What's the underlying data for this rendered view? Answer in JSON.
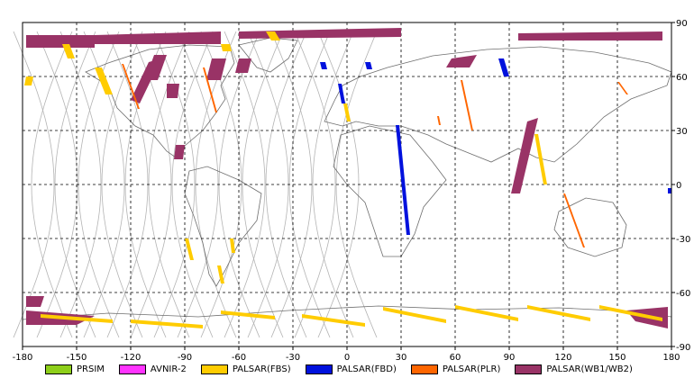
{
  "map": {
    "x_ticks": [
      "-180",
      "-150",
      "-120",
      "-90",
      "-60",
      "-30",
      "0",
      "30",
      "60",
      "90",
      "120",
      "150",
      "180"
    ],
    "y_ticks": [
      "90",
      "60",
      "30",
      "0",
      "-30",
      "-60",
      "-90"
    ],
    "colors": {
      "grid": "#000000",
      "orbits": "#b4b4b4",
      "coast": "#6e6e6e"
    }
  },
  "legend": [
    {
      "label": "PRSIM",
      "color": "#8ecf1a"
    },
    {
      "label": "AVNIR-2",
      "color": "#ff33ff"
    },
    {
      "label": "PALSAR(FBS)",
      "color": "#ffcc00"
    },
    {
      "label": "PALSAR(FBD)",
      "color": "#0011dd"
    },
    {
      "label": "PALSAR(PLR)",
      "color": "#ff6600"
    },
    {
      "label": "PALSAR(WB1/WB2)",
      "color": "#993366"
    }
  ],
  "swaths": [
    {
      "mode": "PALSAR(WB1/WB2)",
      "points": [
        [
          -178,
          83
        ],
        [
          -140,
          83
        ],
        [
          -140,
          76
        ],
        [
          -178,
          76
        ]
      ]
    },
    {
      "mode": "PALSAR(WB1/WB2)",
      "points": [
        [
          -140,
          83
        ],
        [
          -70,
          85
        ],
        [
          -70,
          78
        ],
        [
          -140,
          78
        ]
      ]
    },
    {
      "mode": "PALSAR(WB1/WB2)",
      "points": [
        [
          -60,
          85
        ],
        [
          30,
          87
        ],
        [
          30,
          82
        ],
        [
          -60,
          81
        ]
      ]
    },
    {
      "mode": "PALSAR(WB1/WB2)",
      "points": [
        [
          95,
          84
        ],
        [
          175,
          85
        ],
        [
          175,
          80
        ],
        [
          95,
          80
        ]
      ]
    },
    {
      "mode": "PALSAR(WB1/WB2)",
      "points": [
        [
          -110,
          68
        ],
        [
          -103,
          70
        ],
        [
          -115,
          45
        ],
        [
          -120,
          47
        ]
      ]
    },
    {
      "mode": "PALSAR(WB1/WB2)",
      "points": [
        [
          -107,
          72
        ],
        [
          -100,
          72
        ],
        [
          -105,
          58
        ],
        [
          -112,
          58
        ]
      ]
    },
    {
      "mode": "PALSAR(WB1/WB2)",
      "points": [
        [
          -75,
          70
        ],
        [
          -67,
          70
        ],
        [
          -70,
          58
        ],
        [
          -78,
          58
        ]
      ]
    },
    {
      "mode": "PALSAR(WB1/WB2)",
      "points": [
        [
          -60,
          70
        ],
        [
          -53,
          70
        ],
        [
          -55,
          62
        ],
        [
          -62,
          62
        ]
      ]
    },
    {
      "mode": "PALSAR(WB1/WB2)",
      "points": [
        [
          -100,
          56
        ],
        [
          -93,
          56
        ],
        [
          -94,
          48
        ],
        [
          -100,
          48
        ]
      ]
    },
    {
      "mode": "PALSAR(WB1/WB2)",
      "points": [
        [
          -95,
          22
        ],
        [
          -90,
          22
        ],
        [
          -91,
          14
        ],
        [
          -96,
          14
        ]
      ]
    },
    {
      "mode": "PALSAR(WB1/WB2)",
      "points": [
        [
          58,
          70
        ],
        [
          72,
          72
        ],
        [
          68,
          65
        ],
        [
          55,
          65
        ]
      ]
    },
    {
      "mode": "PALSAR(WB1/WB2)",
      "points": [
        [
          100,
          35
        ],
        [
          106,
          37
        ],
        [
          96,
          -5
        ],
        [
          91,
          -5
        ]
      ]
    },
    {
      "mode": "PALSAR(WB1/WB2)",
      "points": [
        [
          -178,
          -62
        ],
        [
          -168,
          -62
        ],
        [
          -170,
          -68
        ],
        [
          -178,
          -68
        ]
      ]
    },
    {
      "mode": "PALSAR(WB1/WB2)",
      "points": [
        [
          -178,
          -70
        ],
        [
          -140,
          -73
        ],
        [
          -150,
          -78
        ],
        [
          -178,
          -78
        ]
      ]
    },
    {
      "mode": "PALSAR(WB1/WB2)",
      "points": [
        [
          155,
          -70
        ],
        [
          178,
          -68
        ],
        [
          178,
          -80
        ],
        [
          160,
          -76
        ]
      ]
    },
    {
      "mode": "PALSAR(FBD)",
      "points": [
        [
          27,
          33
        ],
        [
          29,
          33
        ],
        [
          35,
          -28
        ],
        [
          33,
          -28
        ]
      ]
    },
    {
      "mode": "PALSAR(FBD)",
      "points": [
        [
          -5,
          56
        ],
        [
          -3,
          56
        ],
        [
          -1,
          45
        ],
        [
          -3,
          45
        ]
      ]
    },
    {
      "mode": "PALSAR(FBD)",
      "points": [
        [
          -15,
          68
        ],
        [
          -12,
          68
        ],
        [
          -11,
          64
        ],
        [
          -14,
          64
        ]
      ]
    },
    {
      "mode": "PALSAR(FBD)",
      "points": [
        [
          10,
          68
        ],
        [
          13,
          68
        ],
        [
          14,
          64
        ],
        [
          11,
          64
        ]
      ]
    },
    {
      "mode": "PALSAR(FBD)",
      "points": [
        [
          84,
          70
        ],
        [
          87,
          70
        ],
        [
          90,
          60
        ],
        [
          87,
          60
        ]
      ]
    },
    {
      "mode": "PALSAR(FBD)",
      "points": [
        [
          178,
          -2
        ],
        [
          180,
          -2
        ],
        [
          180,
          -5
        ],
        [
          178,
          -5
        ]
      ]
    },
    {
      "mode": "PALSAR(FBS)",
      "points": [
        [
          -158,
          78
        ],
        [
          -154,
          78
        ],
        [
          -151,
          70
        ],
        [
          -155,
          70
        ]
      ]
    },
    {
      "mode": "PALSAR(FBS)",
      "points": [
        [
          -178,
          60
        ],
        [
          -174,
          60
        ],
        [
          -175,
          55
        ],
        [
          -179,
          55
        ]
      ]
    },
    {
      "mode": "PALSAR(FBS)",
      "points": [
        [
          -140,
          65
        ],
        [
          -136,
          65
        ],
        [
          -130,
          50
        ],
        [
          -134,
          50
        ]
      ]
    },
    {
      "mode": "PALSAR(FBS)",
      "points": [
        [
          -70,
          78
        ],
        [
          -65,
          78
        ],
        [
          -64,
          74
        ],
        [
          -69,
          74
        ]
      ]
    },
    {
      "mode": "PALSAR(FBS)",
      "points": [
        [
          -45,
          85
        ],
        [
          -40,
          85
        ],
        [
          -37,
          80
        ],
        [
          -42,
          80
        ]
      ]
    },
    {
      "mode": "PALSAR(FBS)",
      "points": [
        [
          -2,
          45
        ],
        [
          0,
          45
        ],
        [
          2,
          35
        ],
        [
          0,
          35
        ]
      ]
    },
    {
      "mode": "PALSAR(FBS)",
      "points": [
        [
          104,
          28
        ],
        [
          106,
          28
        ],
        [
          111,
          0
        ],
        [
          109,
          0
        ]
      ]
    },
    {
      "mode": "PALSAR(FBS)",
      "points": [
        [
          -90,
          -30
        ],
        [
          -88,
          -30
        ],
        [
          -85,
          -42
        ],
        [
          -87,
          -42
        ]
      ]
    },
    {
      "mode": "PALSAR(FBS)",
      "points": [
        [
          -65,
          -30
        ],
        [
          -63,
          -30
        ],
        [
          -62,
          -38
        ],
        [
          -64,
          -38
        ]
      ]
    },
    {
      "mode": "PALSAR(FBS)",
      "points": [
        [
          -72,
          -45
        ],
        [
          -70,
          -45
        ],
        [
          -68,
          -55
        ],
        [
          -70,
          -55
        ]
      ]
    },
    {
      "mode": "PALSAR(FBS)",
      "points": [
        [
          -170,
          -72
        ],
        [
          -130,
          -75
        ],
        [
          -130,
          -77
        ],
        [
          -170,
          -74
        ]
      ]
    },
    {
      "mode": "PALSAR(FBS)",
      "points": [
        [
          -120,
          -75
        ],
        [
          -80,
          -78
        ],
        [
          -80,
          -80
        ],
        [
          -120,
          -77
        ]
      ]
    },
    {
      "mode": "PALSAR(FBS)",
      "points": [
        [
          -70,
          -70
        ],
        [
          -40,
          -73
        ],
        [
          -40,
          -75
        ],
        [
          -70,
          -72
        ]
      ]
    },
    {
      "mode": "PALSAR(FBS)",
      "points": [
        [
          -25,
          -72
        ],
        [
          10,
          -77
        ],
        [
          10,
          -79
        ],
        [
          -25,
          -74
        ]
      ]
    },
    {
      "mode": "PALSAR(FBS)",
      "points": [
        [
          20,
          -68
        ],
        [
          55,
          -75
        ],
        [
          55,
          -77
        ],
        [
          20,
          -70
        ]
      ]
    },
    {
      "mode": "PALSAR(FBS)",
      "points": [
        [
          60,
          -67
        ],
        [
          95,
          -74
        ],
        [
          95,
          -76
        ],
        [
          60,
          -69
        ]
      ]
    },
    {
      "mode": "PALSAR(FBS)",
      "points": [
        [
          100,
          -67
        ],
        [
          135,
          -74
        ],
        [
          135,
          -76
        ],
        [
          100,
          -69
        ]
      ]
    },
    {
      "mode": "PALSAR(FBS)",
      "points": [
        [
          140,
          -67
        ],
        [
          175,
          -74
        ],
        [
          175,
          -76
        ],
        [
          140,
          -69
        ]
      ]
    },
    {
      "mode": "PALSAR(PLR)",
      "points": [
        [
          -125,
          67
        ],
        [
          -124,
          67
        ],
        [
          -115,
          42
        ],
        [
          -116,
          42
        ]
      ]
    },
    {
      "mode": "PALSAR(PLR)",
      "points": [
        [
          -80,
          65
        ],
        [
          -79,
          65
        ],
        [
          -72,
          40
        ],
        [
          -73,
          40
        ]
      ]
    },
    {
      "mode": "PALSAR(PLR)",
      "points": [
        [
          63,
          58
        ],
        [
          64,
          58
        ],
        [
          70,
          30
        ],
        [
          69,
          30
        ]
      ]
    },
    {
      "mode": "PALSAR(PLR)",
      "points": [
        [
          120,
          -5
        ],
        [
          121,
          -5
        ],
        [
          132,
          -35
        ],
        [
          131,
          -35
        ]
      ]
    },
    {
      "mode": "PALSAR(PLR)",
      "points": [
        [
          50,
          38
        ],
        [
          51,
          38
        ],
        [
          52,
          33
        ],
        [
          51,
          33
        ]
      ]
    },
    {
      "mode": "PALSAR(PLR)",
      "points": [
        [
          150,
          57
        ],
        [
          151,
          57
        ],
        [
          156,
          50
        ],
        [
          155,
          50
        ]
      ]
    }
  ]
}
